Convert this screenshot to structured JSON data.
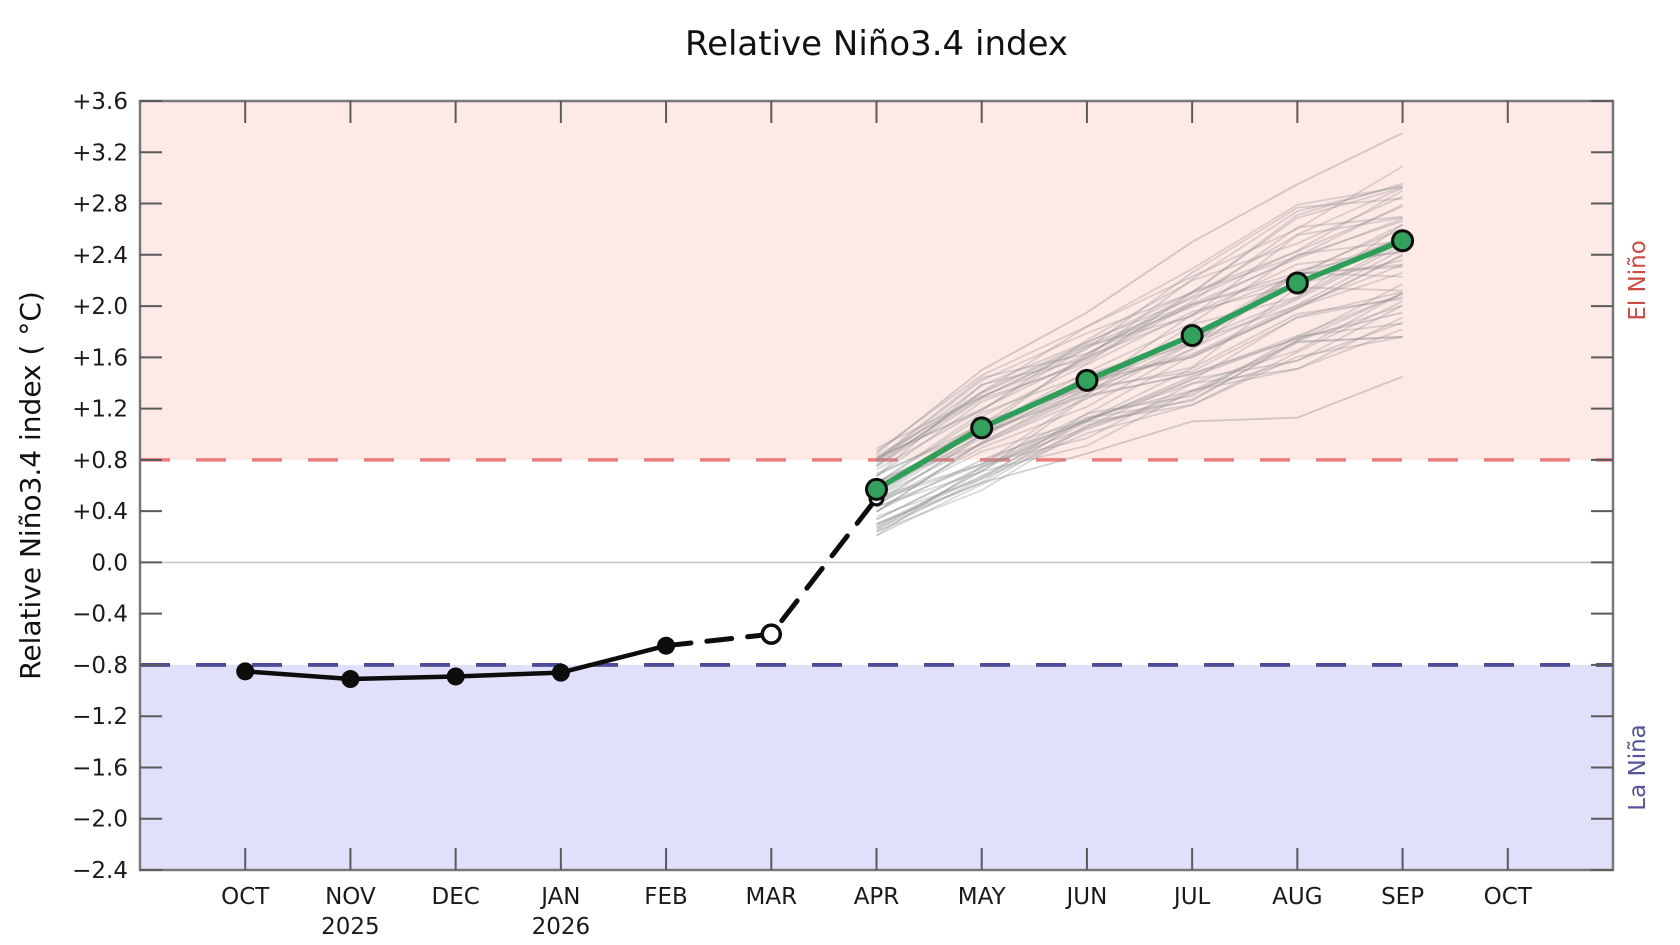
{
  "chart_data": {
    "type": "line",
    "title": "Relative Niño3.4 index",
    "ylabel": "Relative Niño3.4 index ( °C)",
    "xlabel": "",
    "ylim": [
      -2.4,
      3.6
    ],
    "grid": "off",
    "categories": [
      "OCT",
      "NOV",
      "DEC",
      "JAN",
      "FEB",
      "MAR",
      "APR",
      "MAY",
      "JUN",
      "JUL",
      "AUG",
      "SEP",
      "OCT"
    ],
    "year_labels": [
      {
        "month_index": 1,
        "label": "2025"
      },
      {
        "month_index": 3,
        "label": "2026"
      }
    ],
    "yticks": [
      {
        "value": 3.6,
        "label": "+3.6"
      },
      {
        "value": 3.2,
        "label": "+3.2"
      },
      {
        "value": 2.8,
        "label": "+2.8"
      },
      {
        "value": 2.4,
        "label": "+2.4"
      },
      {
        "value": 2.0,
        "label": "+2.0"
      },
      {
        "value": 1.6,
        "label": "+1.6"
      },
      {
        "value": 1.2,
        "label": "+1.2"
      },
      {
        "value": 0.8,
        "label": "+0.8"
      },
      {
        "value": 0.4,
        "label": "+0.4"
      },
      {
        "value": 0.0,
        "label": "0.0"
      },
      {
        "value": -0.4,
        "label": "−0.4"
      },
      {
        "value": -0.8,
        "label": "−0.8"
      },
      {
        "value": -1.2,
        "label": "−1.2"
      },
      {
        "value": -1.6,
        "label": "−1.6"
      },
      {
        "value": -2.0,
        "label": "−2.0"
      },
      {
        "value": -2.4,
        "label": "−2.4"
      }
    ],
    "region_labels": {
      "el_nino": "El Niño",
      "la_nina": "La Niña"
    },
    "thresholds": {
      "el_nino": 0.8,
      "la_nina": -0.8,
      "zero": 0.0
    },
    "series": [
      {
        "name": "observed",
        "style": "solid-black-dots",
        "x": [
          0,
          1,
          2,
          3,
          4
        ],
        "values": [
          -0.85,
          -0.91,
          -0.89,
          -0.86,
          -0.65
        ]
      },
      {
        "name": "transition",
        "style": "dashed-black",
        "x": [
          4,
          5,
          6
        ],
        "values": [
          -0.65,
          -0.56,
          0.5
        ],
        "open_marker_indices": [
          1,
          2
        ]
      },
      {
        "name": "forecast-mean",
        "style": "solid-green-dots",
        "x": [
          6,
          7,
          8,
          9,
          10,
          11
        ],
        "values": [
          0.57,
          1.05,
          1.42,
          1.77,
          2.18,
          2.51
        ]
      }
    ],
    "ensemble": {
      "x": [
        6,
        7,
        8,
        9,
        10,
        11
      ],
      "member_count": 52,
      "band_low": [
        0.25,
        0.6,
        0.95,
        1.25,
        1.55,
        1.8
      ],
      "band_high": [
        0.85,
        1.42,
        1.8,
        2.25,
        2.75,
        3.05
      ],
      "outlier_members": [
        [
          0.3,
          0.62,
          0.85,
          1.1,
          1.13,
          1.45
        ],
        [
          0.4,
          0.8,
          1.1,
          1.45,
          1.75,
          1.95
        ],
        [
          0.85,
          1.5,
          1.95,
          2.5,
          2.95,
          3.35
        ]
      ]
    },
    "colors": {
      "el_nino_fill": "#fdE9e6",
      "la_nina_fill": "#e0e0fa",
      "el_nino_line": "#ee7e7e",
      "la_nina_line": "#4d4d99",
      "el_nino_text": "#cc4c44",
      "la_nina_text": "#55559b",
      "observed": "#0d0d0d",
      "forecast_mean": "#2e9e58",
      "forecast_dot": "#33a05c",
      "ensemble": "#8f8f8f",
      "zero_line": "#c8c8c8",
      "axis": "#787878"
    }
  }
}
